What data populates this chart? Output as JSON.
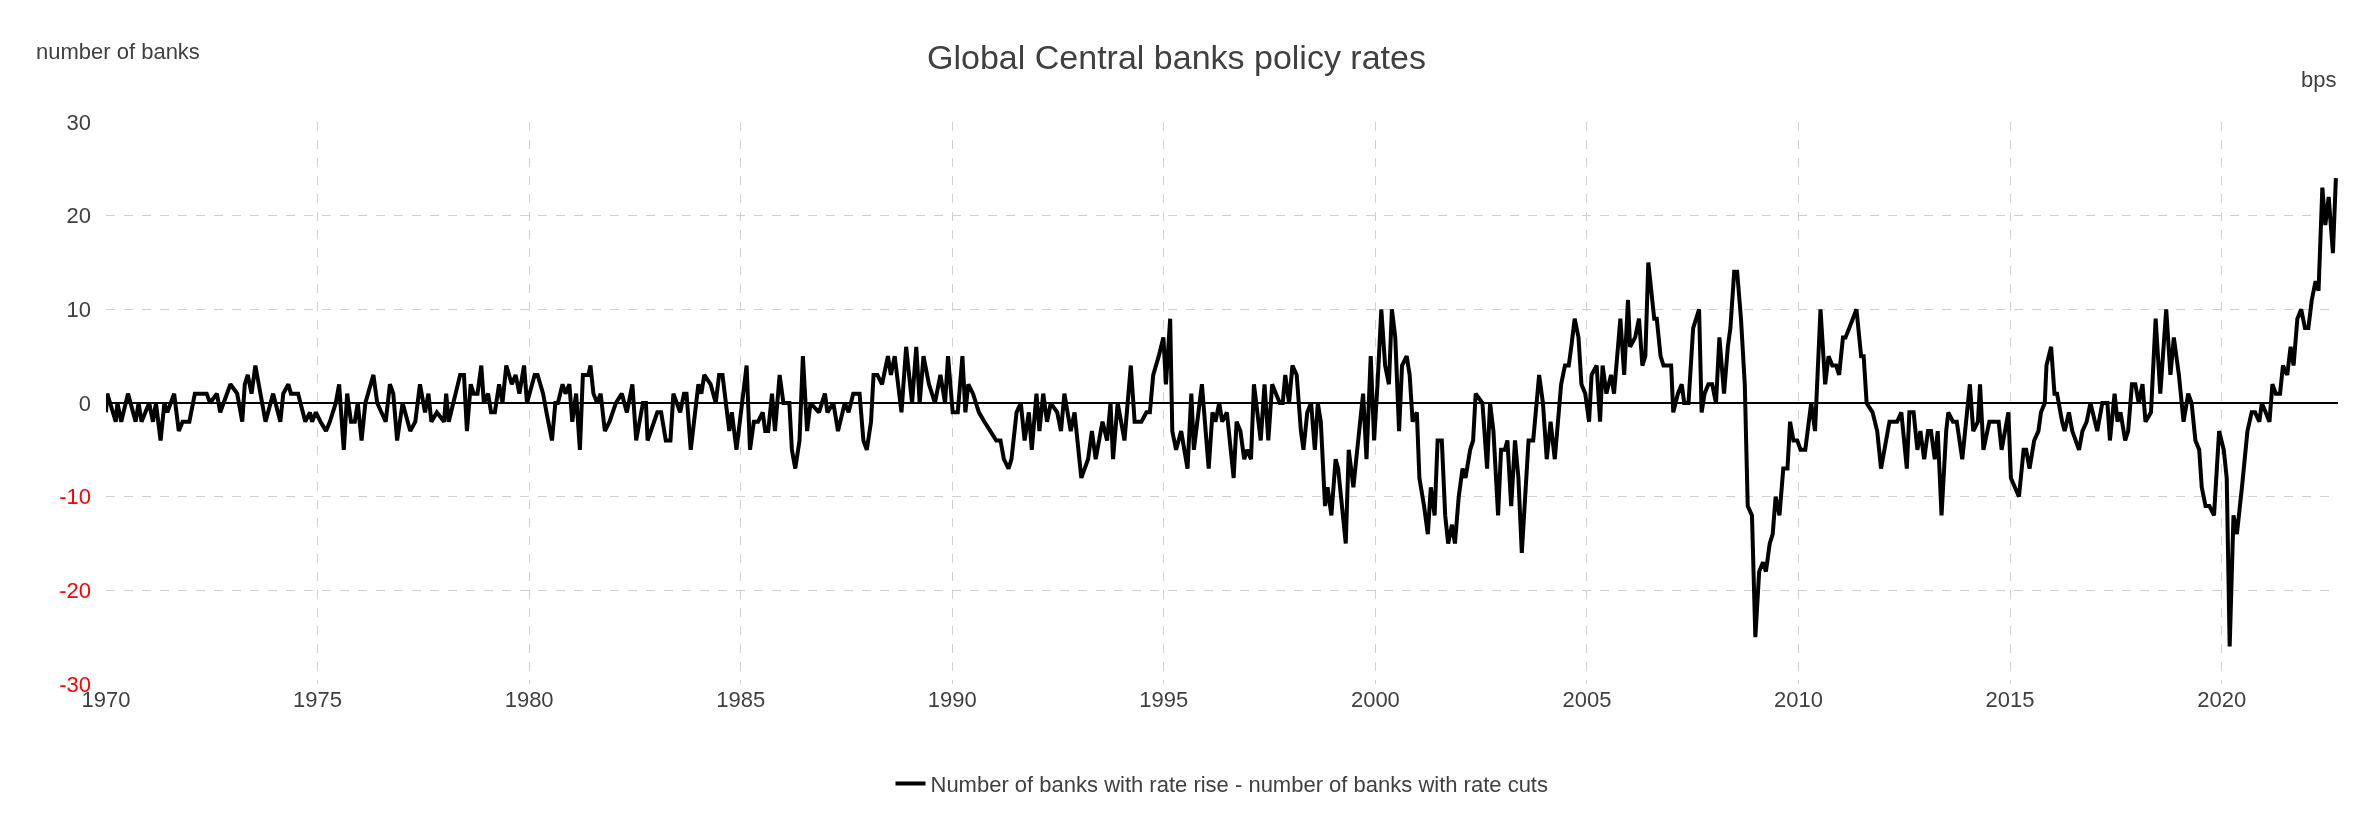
{
  "chart_data": {
    "type": "line",
    "title": "Global Central banks policy rates",
    "ylabel": "number of banks",
    "y2label": "bps",
    "xlim": [
      1970,
      2022.75
    ],
    "xticks": [
      1970,
      1975,
      1980,
      1985,
      1990,
      1995,
      2000,
      2005,
      2010,
      2015,
      2020
    ],
    "ylim": [
      -30,
      30
    ],
    "yticks": [
      -30,
      -20,
      -10,
      0,
      10,
      20,
      30
    ],
    "grid": true,
    "legend": "bottom",
    "marker": "none",
    "line_style": "solid",
    "series": [
      {
        "name": "Number of banks with rate rise - number of banks with rate cuts",
        "color": "#000000",
        "x": [
          1970.0,
          1970.03,
          1970.23,
          1970.27,
          1970.36,
          1970.52,
          1970.7,
          1970.77,
          1970.84,
          1971.02,
          1971.11,
          1971.18,
          1971.29,
          1971.38,
          1971.45,
          1971.61,
          1971.72,
          1971.81,
          1971.97,
          1972.1,
          1972.38,
          1972.46,
          1972.62,
          1972.7,
          1972.94,
          1973.1,
          1973.22,
          1973.28,
          1973.35,
          1973.44,
          1973.53,
          1973.77,
          1973.95,
          1974.12,
          1974.19,
          1974.31,
          1974.37,
          1974.54,
          1974.71,
          1974.82,
          1974.87,
          1974.96,
          1975.07,
          1975.2,
          1975.29,
          1975.43,
          1975.51,
          1975.62,
          1975.7,
          1975.79,
          1975.88,
          1975.95,
          1976.04,
          1976.13,
          1976.32,
          1976.41,
          1976.61,
          1976.71,
          1976.79,
          1976.88,
          1977.01,
          1977.19,
          1977.31,
          1977.42,
          1977.54,
          1977.62,
          1977.69,
          1977.82,
          1977.99,
          1978.04,
          1978.1,
          1978.37,
          1978.46,
          1978.53,
          1978.62,
          1978.69,
          1978.78,
          1978.87,
          1978.93,
          1979.03,
          1979.1,
          1979.19,
          1979.29,
          1979.37,
          1979.46,
          1979.59,
          1979.68,
          1979.77,
          1979.88,
          1979.95,
          1980.13,
          1980.2,
          1980.33,
          1980.41,
          1980.54,
          1980.62,
          1980.68,
          1980.79,
          1980.86,
          1980.95,
          1981.02,
          1981.11,
          1981.2,
          1981.27,
          1981.4,
          1981.45,
          1981.52,
          1981.61,
          1981.69,
          1981.79,
          1981.9,
          1982.05,
          1982.19,
          1982.31,
          1982.44,
          1982.53,
          1982.69,
          1982.76,
          1982.8,
          1983.03,
          1983.12,
          1983.23,
          1983.34,
          1983.41,
          1983.57,
          1983.66,
          1983.72,
          1983.82,
          1984.0,
          1984.07,
          1984.14,
          1984.29,
          1984.41,
          1984.49,
          1984.57,
          1984.73,
          1984.79,
          1984.9,
          1985.14,
          1985.22,
          1985.31,
          1985.41,
          1985.52,
          1985.58,
          1985.65,
          1985.74,
          1985.81,
          1985.92,
          1986.01,
          1986.15,
          1986.21,
          1986.29,
          1986.39,
          1986.47,
          1986.57,
          1986.65,
          1986.85,
          1986.99,
          1987.05,
          1987.19,
          1987.3,
          1987.46,
          1987.55,
          1987.66,
          1987.81,
          1987.9,
          1987.98,
          1988.08,
          1988.14,
          1988.23,
          1988.34,
          1988.48,
          1988.55,
          1988.64,
          1988.8,
          1988.91,
          1989.05,
          1989.15,
          1989.23,
          1989.32,
          1989.45,
          1989.59,
          1989.72,
          1989.83,
          1989.9,
          1990.01,
          1990.13,
          1990.24,
          1990.31,
          1990.38,
          1990.49,
          1990.63,
          1990.76,
          1990.9,
          1991.04,
          1991.14,
          1991.22,
          1991.33,
          1991.4,
          1991.52,
          1991.62,
          1991.71,
          1991.81,
          1991.88,
          1991.99,
          1992.06,
          1992.15,
          1992.24,
          1992.33,
          1992.48,
          1992.57,
          1992.65,
          1992.8,
          1992.89,
          1993.05,
          1993.21,
          1993.3,
          1993.39,
          1993.55,
          1993.66,
          1993.74,
          1993.8,
          1993.91,
          1994.07,
          1994.22,
          1994.31,
          1994.47,
          1994.59,
          1994.67,
          1994.75,
          1994.88,
          1994.99,
          1995.05,
          1995.15,
          1995.2,
          1995.29,
          1995.41,
          1995.56,
          1995.65,
          1995.71,
          1995.9,
          1996.06,
          1996.15,
          1996.22,
          1996.31,
          1996.38,
          1996.49,
          1996.65,
          1996.72,
          1996.81,
          1996.9,
          1996.97,
          1997.06,
          1997.13,
          1997.29,
          1997.38,
          1997.47,
          1997.56,
          1997.74,
          1997.81,
          1997.87,
          1997.96,
          1998.04,
          1998.14,
          1998.24,
          1998.3,
          1998.39,
          1998.48,
          1998.57,
          1998.64,
          1998.71,
          1998.81,
          1998.87,
          1998.96,
          1999.06,
          1999.12,
          1999.3,
          1999.37,
          1999.48,
          1999.57,
          1999.71,
          1999.79,
          1999.89,
          1999.97,
          2000.05,
          2000.14,
          2000.23,
          2000.32,
          2000.39,
          2000.47,
          2000.56,
          2000.63,
          2000.74,
          2000.81,
          2000.88,
          2000.98,
          2001.04,
          2001.15,
          2001.24,
          2001.31,
          2001.4,
          2001.47,
          2001.57,
          2001.65,
          2001.72,
          2001.81,
          2001.88,
          2001.97,
          2002.06,
          2002.13,
          2002.24,
          2002.31,
          2002.37,
          2002.53,
          2002.64,
          2002.71,
          2002.79,
          2002.9,
          2002.97,
          2003.06,
          2003.12,
          2003.21,
          2003.3,
          2003.38,
          2003.46,
          2003.62,
          2003.73,
          2003.87,
          2003.96,
          2004.05,
          2004.14,
          2004.24,
          2004.39,
          2004.48,
          2004.57,
          2004.63,
          2004.71,
          2004.8,
          2004.87,
          2004.96,
          2005.05,
          2005.11,
          2005.23,
          2005.31,
          2005.37,
          2005.46,
          2005.57,
          2005.64,
          2005.79,
          2005.88,
          2005.97,
          2006.02,
          2006.14,
          2006.23,
          2006.31,
          2006.38,
          2006.45,
          2006.59,
          2006.65,
          2006.74,
          2006.81,
          2006.99,
          2007.04,
          2007.15,
          2007.24,
          2007.3,
          2007.4,
          2007.51,
          2007.65,
          2007.71,
          2007.78,
          2007.87,
          2007.96,
          2008.05,
          2008.13,
          2008.24,
          2008.33,
          2008.39,
          2008.48,
          2008.55,
          2008.64,
          2008.73,
          2008.8,
          2008.9,
          2008.98,
          2009.07,
          2009.16,
          2009.23,
          2009.32,
          2009.39,
          2009.46,
          2009.55,
          2009.64,
          2009.74,
          2009.8,
          2009.88,
          2009.97,
          2010.05,
          2010.16,
          2010.3,
          2010.39,
          2010.52,
          2010.63,
          2010.71,
          2010.8,
          2010.89,
          2010.96,
          2011.05,
          2011.11,
          2011.2,
          2011.37,
          2011.48,
          2011.54,
          2011.61,
          2011.75,
          2011.86,
          2011.95,
          2012.15,
          2012.33,
          2012.43,
          2012.56,
          2012.62,
          2012.72,
          2012.81,
          2012.88,
          2012.97,
          2013.06,
          2013.13,
          2013.22,
          2013.29,
          2013.38,
          2013.49,
          2013.54,
          2013.65,
          2013.74,
          2013.87,
          2014.05,
          2014.13,
          2014.24,
          2014.29,
          2014.37,
          2014.51,
          2014.73,
          2014.8,
          2014.96,
          2015.02,
          2015.21,
          2015.32,
          2015.38,
          2015.46,
          2015.57,
          2015.67,
          2015.73,
          2015.82,
          2015.86,
          2015.97,
          2016.05,
          2016.11,
          2016.23,
          2016.29,
          2016.39,
          2016.47,
          2016.63,
          2016.71,
          2016.81,
          2016.9,
          2017.06,
          2017.18,
          2017.3,
          2017.36,
          2017.47,
          2017.54,
          2017.61,
          2017.72,
          2017.79,
          2017.88,
          2017.96,
          2018.04,
          2018.13,
          2018.2,
          2018.33,
          2018.44,
          2018.55,
          2018.69,
          2018.79,
          2018.87,
          2018.99,
          2019.1,
          2019.21,
          2019.29,
          2019.38,
          2019.47,
          2019.53,
          2019.62,
          2019.71,
          2019.82,
          2019.94,
          2020.05,
          2020.12,
          2020.19,
          2020.28,
          2020.36,
          2020.48,
          2020.61,
          2020.71,
          2020.79,
          2020.89,
          2020.95,
          2021.04,
          2021.13,
          2021.2,
          2021.28,
          2021.38,
          2021.45,
          2021.55,
          2021.63,
          2021.7,
          2021.79,
          2021.88,
          2021.97,
          2022.05,
          2022.13,
          2022.22,
          2022.29,
          2022.38,
          2022.45,
          2022.53,
          2022.63,
          2022.7
        ],
        "values": [
          -1,
          1,
          -2,
          0,
          -2,
          1,
          -2,
          0,
          -2,
          0,
          -2,
          0,
          -4,
          0,
          -1,
          1,
          -3,
          -2,
          -2,
          1,
          1,
          0,
          1,
          -1,
          2,
          1,
          -2,
          2,
          3,
          1,
          4,
          -2,
          1,
          -2,
          1,
          2,
          1,
          1,
          -2,
          -1,
          -2,
          -1,
          -2,
          -3,
          -2,
          0,
          2,
          -5,
          1,
          -2,
          -2,
          0,
          -4,
          0,
          3,
          0,
          -2,
          2,
          1,
          -4,
          0,
          -3,
          -2,
          2,
          -1,
          1,
          -2,
          -1,
          -2,
          1,
          -2,
          3,
          3,
          -3,
          2,
          1,
          1,
          4,
          0,
          1,
          -1,
          -1,
          2,
          0,
          4,
          2,
          3,
          1,
          4,
          0,
          3,
          3,
          1,
          -1,
          -4,
          0,
          0,
          2,
          1,
          2,
          -2,
          1,
          -5,
          3,
          3,
          4,
          1,
          0,
          1,
          -3,
          -2,
          0,
          1,
          -1,
          2,
          -4,
          0,
          0,
          -4,
          -1,
          -1,
          -4,
          -4,
          1,
          -1,
          1,
          1,
          -5,
          2,
          1,
          3,
          2,
          0,
          3,
          3,
          -3,
          -1,
          -5,
          4,
          -5,
          -2,
          -2,
          -1,
          -3,
          -3,
          1,
          -3,
          3,
          0,
          0,
          -5,
          -7,
          -4,
          5,
          -3,
          0,
          -1,
          1,
          -1,
          0,
          -3,
          0,
          -1,
          1,
          1,
          -4,
          -5,
          -2,
          3,
          3,
          2,
          5,
          3,
          5,
          -1,
          6,
          0,
          6,
          0,
          5,
          2,
          0,
          3,
          0,
          5,
          -1,
          -1,
          5,
          -1,
          2,
          1,
          -1,
          -2,
          -3,
          -4,
          -4,
          -6,
          -7,
          -6,
          -1,
          0,
          -4,
          -1,
          -5,
          1,
          -3,
          1,
          -2,
          0,
          -1,
          -3,
          1,
          -3,
          -1,
          -8,
          -6,
          -3,
          -6,
          -2,
          -4,
          0,
          -6,
          0,
          -4,
          4,
          -2,
          -2,
          -1,
          -1,
          3,
          5,
          7,
          2,
          9,
          -3,
          -5,
          -3,
          -7,
          1,
          -5,
          2,
          -7,
          -1,
          -2,
          0,
          -2,
          -1,
          -8,
          -2,
          -3,
          -6,
          -5,
          -6,
          2,
          -4,
          2,
          -4,
          2,
          0,
          0,
          3,
          0,
          4,
          3,
          -3,
          -5,
          -1,
          0,
          -5,
          0,
          -2,
          -11,
          -9,
          -12,
          -6,
          -7,
          -15,
          -5,
          -9,
          -5,
          1,
          -6,
          5,
          -4,
          2,
          10,
          4,
          2,
          10,
          7,
          -3,
          4,
          5,
          3,
          -2,
          -1,
          -8,
          -11,
          -14,
          -9,
          -12,
          -4,
          -4,
          -12,
          -15,
          -13,
          -15,
          -10,
          -7,
          -8,
          -5,
          -4,
          1,
          0,
          -7,
          0,
          -3,
          -12,
          -5,
          -5,
          -4,
          -11,
          -4,
          -8,
          -16,
          -4,
          -4,
          3,
          0,
          -6,
          -2,
          -6,
          2,
          4,
          4,
          6,
          9,
          7,
          2,
          1,
          -2,
          3,
          4,
          -2,
          4,
          1,
          3,
          1,
          9,
          3,
          11,
          6,
          7,
          9,
          4,
          5,
          15,
          9,
          9,
          5,
          4,
          4,
          -1,
          1,
          2,
          0,
          0,
          8,
          10,
          -1,
          1,
          2,
          2,
          0,
          7,
          1,
          6,
          8,
          14,
          14,
          9,
          2,
          -11,
          -12,
          -25,
          -18,
          -17,
          -18,
          -15,
          -14,
          -10,
          -12,
          -7,
          -7,
          -2,
          -4,
          -4,
          -5,
          -5,
          0,
          -3,
          10,
          2,
          5,
          4,
          4,
          3,
          7,
          7,
          8,
          10,
          5,
          5,
          0,
          -1,
          -3,
          -7,
          -2,
          -2,
          -1,
          -7,
          -1,
          -1,
          -5,
          -3,
          -6,
          -3,
          -3,
          -6,
          -3,
          -12,
          -3,
          -1,
          -2,
          -2,
          -6,
          2,
          -3,
          -2,
          2,
          -5,
          -2,
          -2,
          -5,
          -1,
          -8,
          -10,
          -5,
          -5,
          -7,
          -4,
          -3,
          -1,
          0,
          4,
          6,
          1,
          1,
          -2,
          -3,
          -1,
          -3,
          -5,
          -3,
          -2,
          0,
          -3,
          0,
          0,
          -4,
          1,
          -2,
          -1,
          -4,
          -3,
          2,
          2,
          0,
          2,
          -2,
          -1,
          9,
          1,
          10,
          3,
          7,
          3,
          -2,
          1,
          0,
          -4,
          -5,
          -9,
          -11,
          -11,
          -12,
          -3,
          -5,
          -8,
          -26,
          -12,
          -14,
          -9,
          -3,
          -1,
          -1,
          -2,
          0,
          -1,
          -2,
          2,
          1,
          1,
          4,
          3,
          6,
          4,
          9,
          10,
          8,
          8,
          11,
          13,
          12,
          23,
          19,
          22,
          16,
          24
        ]
      }
    ]
  }
}
